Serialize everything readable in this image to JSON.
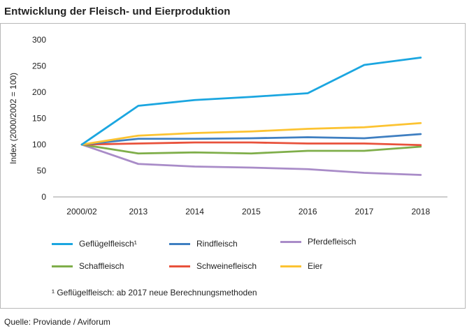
{
  "title": "Entwicklung der Fleisch- und Eierproduktion",
  "footnote": "¹ Geflügelfleisch: ab 2017 neue Berechnungsmethoden",
  "source": "Quelle:  Proviande / Aviforum",
  "chart_data": {
    "type": "line",
    "title": "Entwicklung der Fleisch- und Eierproduktion",
    "xlabel": "",
    "ylabel": "Index (2000/2002 = 100)",
    "categories": [
      "2000/02",
      "2013",
      "2014",
      "2015",
      "2016",
      "2017",
      "2018"
    ],
    "ylim": [
      0,
      300
    ],
    "yticks": [
      "0",
      "50",
      "100",
      "150",
      "200",
      "250",
      "300"
    ],
    "grid": false,
    "legend_position": "bottom",
    "series": [
      {
        "name": "Geflügelfleisch¹",
        "color": "#1ba6e0",
        "values": [
          100,
          174,
          185,
          191,
          198,
          252,
          266
        ]
      },
      {
        "name": "Rindfleisch",
        "color": "#3f7fc1",
        "values": [
          100,
          111,
          111,
          112,
          114,
          112,
          120
        ]
      },
      {
        "name": "Pferdefleisch",
        "color": "#a98cc8",
        "values": [
          100,
          63,
          58,
          56,
          53,
          46,
          42
        ]
      },
      {
        "name": "Schaffleisch",
        "color": "#7fae4a",
        "values": [
          100,
          83,
          85,
          83,
          88,
          88,
          96
        ]
      },
      {
        "name": "Schweinefleisch",
        "color": "#e8523c",
        "values": [
          100,
          102,
          104,
          104,
          102,
          102,
          99
        ]
      },
      {
        "name": "Eier",
        "color": "#fcc332",
        "values": [
          100,
          117,
          122,
          125,
          130,
          133,
          141
        ]
      }
    ]
  }
}
